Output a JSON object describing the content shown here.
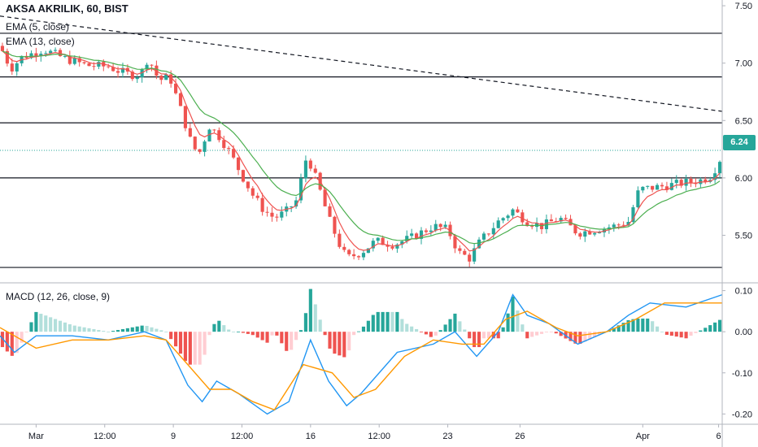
{
  "header": {
    "symbol_line": "AKSA AKRILIK, 60, BIST",
    "ema_fast": "EMA (5, close)",
    "ema_slow": "EMA (13, close)",
    "macd": "MACD (12, 26, close, 9)"
  },
  "last_price_badge": "6.24",
  "chart_data": [
    {
      "type": "candlestick",
      "title": "AKSA AKRILIK, 60, BIST",
      "ylim": [
        5.1,
        7.55
      ],
      "y_ticks": [
        "7.50",
        "7.00",
        "6.50",
        "6.00",
        "5.50"
      ],
      "y_tick_values": [
        7.5,
        7.0,
        6.5,
        6.0,
        5.5
      ],
      "x_ticks": [
        "Mar",
        "12:00",
        "9",
        "12:00",
        "16",
        "12:00",
        "23",
        "26",
        "Apr",
        "6"
      ],
      "horizontal_levels": [
        7.26,
        6.88,
        6.48,
        6.0,
        5.22
      ],
      "last_price": 6.24,
      "trendline": {
        "from": {
          "t": 0,
          "y": 7.41
        },
        "to": {
          "t": 1,
          "y": 6.58
        }
      },
      "close_path": [
        [
          0,
          7.15
        ],
        [
          0.015,
          6.95
        ],
        [
          0.03,
          7.05
        ],
        [
          0.06,
          7.12
        ],
        [
          0.09,
          7.04
        ],
        [
          0.12,
          6.98
        ],
        [
          0.15,
          6.97
        ],
        [
          0.165,
          6.93
        ],
        [
          0.18,
          6.9
        ],
        [
          0.195,
          6.9
        ],
        [
          0.205,
          7.05
        ],
        [
          0.22,
          6.85
        ],
        [
          0.235,
          6.88
        ],
        [
          0.25,
          6.6
        ],
        [
          0.265,
          6.3
        ],
        [
          0.275,
          6.2
        ],
        [
          0.29,
          6.45
        ],
        [
          0.305,
          6.35
        ],
        [
          0.32,
          6.2
        ],
        [
          0.335,
          6.02
        ],
        [
          0.35,
          5.85
        ],
        [
          0.365,
          5.72
        ],
        [
          0.38,
          5.65
        ],
        [
          0.395,
          5.7
        ],
        [
          0.41,
          5.8
        ],
        [
          0.425,
          6.2
        ],
        [
          0.44,
          5.95
        ],
        [
          0.455,
          5.65
        ],
        [
          0.47,
          5.42
        ],
        [
          0.48,
          5.3
        ],
        [
          0.5,
          5.35
        ],
        [
          0.52,
          5.45
        ],
        [
          0.545,
          5.42
        ],
        [
          0.57,
          5.48
        ],
        [
          0.6,
          5.58
        ],
        [
          0.62,
          5.55
        ],
        [
          0.635,
          5.35
        ],
        [
          0.65,
          5.3
        ],
        [
          0.665,
          5.45
        ],
        [
          0.69,
          5.62
        ],
        [
          0.71,
          5.72
        ],
        [
          0.73,
          5.62
        ],
        [
          0.75,
          5.58
        ],
        [
          0.775,
          5.65
        ],
        [
          0.8,
          5.52
        ],
        [
          0.825,
          5.55
        ],
        [
          0.85,
          5.58
        ],
        [
          0.87,
          5.62
        ],
        [
          0.885,
          5.9
        ],
        [
          0.91,
          5.92
        ],
        [
          0.94,
          5.95
        ],
        [
          0.97,
          5.98
        ],
        [
          0.985,
          6.02
        ],
        [
          1,
          6.2
        ]
      ],
      "series": [
        {
          "name": "EMA (5, close)",
          "color": "#ef5350"
        },
        {
          "name": "EMA (13, close)",
          "color": "#4caf50"
        }
      ]
    },
    {
      "type": "line+histogram",
      "title": "MACD (12, 26, close, 9)",
      "ylim": [
        -0.225,
        0.115
      ],
      "y_ticks": [
        "0.10",
        "0.00",
        "-0.10",
        "-0.20"
      ],
      "y_tick_values": [
        0.1,
        0.0,
        -0.1,
        -0.2
      ],
      "series": [
        {
          "name": "MACD",
          "color": "#2196f3",
          "points": [
            [
              0,
              -0.01
            ],
            [
              0.02,
              -0.05
            ],
            [
              0.05,
              -0.01
            ],
            [
              0.1,
              -0.01
            ],
            [
              0.15,
              -0.02
            ],
            [
              0.2,
              0.0
            ],
            [
              0.23,
              -0.02
            ],
            [
              0.26,
              -0.13
            ],
            [
              0.28,
              -0.17
            ],
            [
              0.3,
              -0.12
            ],
            [
              0.33,
              -0.15
            ],
            [
              0.37,
              -0.2
            ],
            [
              0.4,
              -0.17
            ],
            [
              0.43,
              -0.02
            ],
            [
              0.455,
              -0.12
            ],
            [
              0.48,
              -0.18
            ],
            [
              0.5,
              -0.15
            ],
            [
              0.55,
              -0.05
            ],
            [
              0.6,
              -0.03
            ],
            [
              0.63,
              -0.0
            ],
            [
              0.66,
              -0.06
            ],
            [
              0.69,
              0.0
            ],
            [
              0.71,
              0.09
            ],
            [
              0.73,
              0.04
            ],
            [
              0.76,
              0.02
            ],
            [
              0.8,
              -0.03
            ],
            [
              0.84,
              0.0
            ],
            [
              0.87,
              0.04
            ],
            [
              0.9,
              0.07
            ],
            [
              0.95,
              0.06
            ],
            [
              1,
              0.09
            ]
          ]
        },
        {
          "name": "Signal",
          "color": "#ff9800",
          "points": [
            [
              0,
              0.01
            ],
            [
              0.05,
              -0.04
            ],
            [
              0.1,
              -0.02
            ],
            [
              0.15,
              -0.02
            ],
            [
              0.2,
              -0.01
            ],
            [
              0.23,
              -0.02
            ],
            [
              0.26,
              -0.08
            ],
            [
              0.29,
              -0.14
            ],
            [
              0.32,
              -0.14
            ],
            [
              0.35,
              -0.17
            ],
            [
              0.38,
              -0.19
            ],
            [
              0.42,
              -0.08
            ],
            [
              0.46,
              -0.1
            ],
            [
              0.49,
              -0.16
            ],
            [
              0.52,
              -0.14
            ],
            [
              0.56,
              -0.06
            ],
            [
              0.6,
              -0.02
            ],
            [
              0.64,
              -0.03
            ],
            [
              0.67,
              -0.03
            ],
            [
              0.7,
              0.03
            ],
            [
              0.73,
              0.05
            ],
            [
              0.77,
              0.01
            ],
            [
              0.8,
              -0.01
            ],
            [
              0.84,
              0.0
            ],
            [
              0.88,
              0.03
            ],
            [
              0.92,
              0.07
            ],
            [
              0.96,
              0.07
            ],
            [
              1,
              0.07
            ]
          ]
        }
      ],
      "histogram_colors": {
        "pos_strong": "#26a69a",
        "pos_weak": "#b2dfdb",
        "neg_strong": "#ef5350",
        "neg_weak": "#ffcdd2"
      }
    }
  ],
  "colors": {
    "up": "#26a69a",
    "down": "#ef5350",
    "grid_line": "#131722",
    "last_price_line": "#26a69a"
  }
}
